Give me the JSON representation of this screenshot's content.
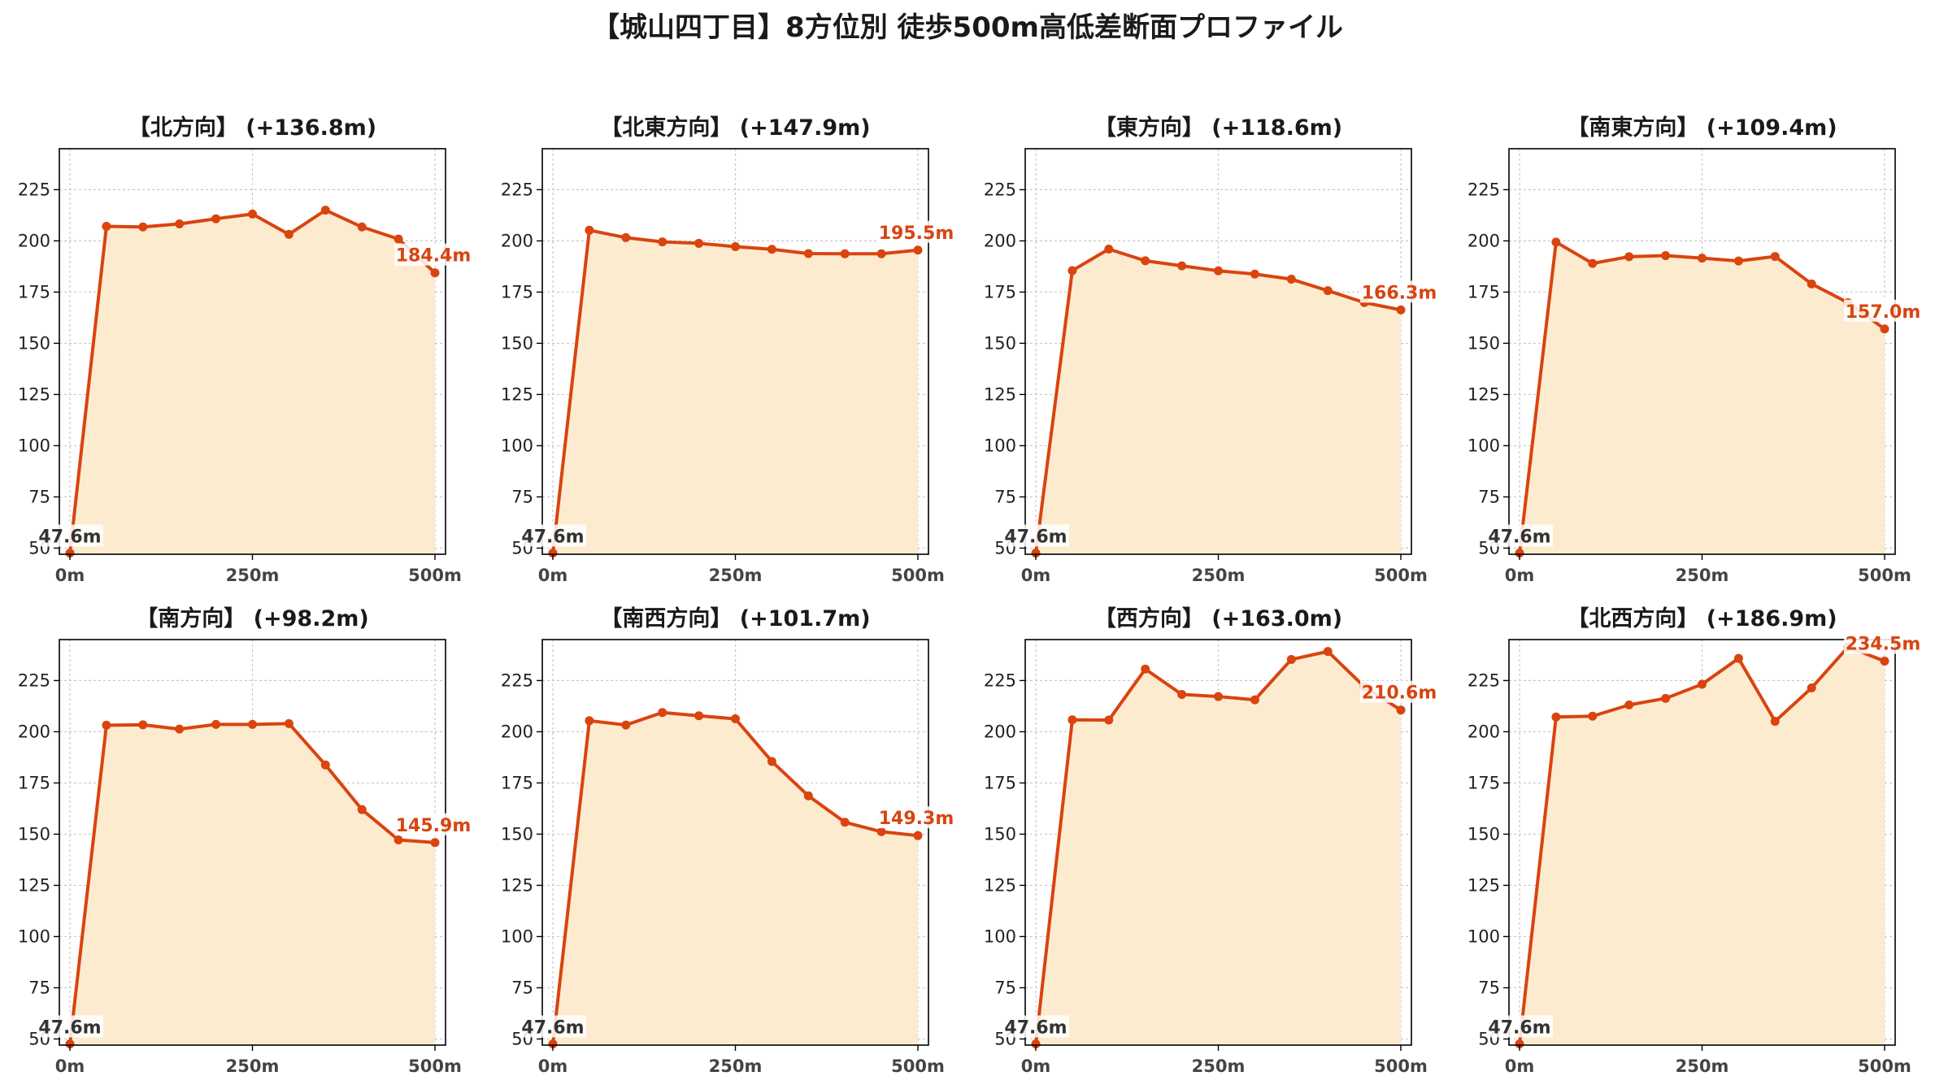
{
  "title": "【城山四丁目】8方位別 徒歩500m高低差断面プロファイル",
  "colors": {
    "line": "#d9440f",
    "fill": "#fdebd0",
    "grid": "#c8c8c8"
  },
  "chart_data": [
    {
      "type": "area",
      "title": "【北方向】 (+136.8m)",
      "x": [
        0,
        50,
        100,
        150,
        200,
        250,
        300,
        350,
        400,
        450,
        500
      ],
      "y": [
        47.6,
        207.1,
        206.8,
        208.3,
        210.8,
        213.1,
        203.2,
        215.0,
        206.8,
        200.9,
        184.4
      ],
      "xticks": [
        "0m",
        "250m",
        "500m"
      ],
      "yticks": [
        50,
        75,
        100,
        125,
        150,
        175,
        200,
        225
      ],
      "ylim": [
        47,
        245
      ],
      "xlim": [
        0,
        500
      ],
      "start_label": "47.6m",
      "end_label": "184.4m",
      "grid": true
    },
    {
      "type": "area",
      "title": "【北東方向】 (+147.9m)",
      "x": [
        0,
        50,
        100,
        150,
        200,
        250,
        300,
        350,
        400,
        450,
        500
      ],
      "y": [
        47.6,
        205.2,
        201.6,
        199.5,
        198.8,
        197.2,
        195.9,
        193.8,
        193.7,
        193.7,
        195.5
      ],
      "xticks": [
        "0m",
        "250m",
        "500m"
      ],
      "yticks": [
        50,
        75,
        100,
        125,
        150,
        175,
        200,
        225
      ],
      "ylim": [
        47,
        245
      ],
      "xlim": [
        0,
        500
      ],
      "start_label": "47.6m",
      "end_label": "195.5m",
      "grid": true
    },
    {
      "type": "area",
      "title": "【東方向】 (+118.6m)",
      "x": [
        0,
        50,
        100,
        150,
        200,
        250,
        300,
        350,
        400,
        450,
        500
      ],
      "y": [
        47.6,
        185.5,
        196.0,
        190.3,
        187.8,
        185.4,
        183.8,
        181.3,
        175.7,
        169.9,
        166.3
      ],
      "xticks": [
        "0m",
        "250m",
        "500m"
      ],
      "yticks": [
        50,
        75,
        100,
        125,
        150,
        175,
        200,
        225
      ],
      "ylim": [
        47,
        245
      ],
      "xlim": [
        0,
        500
      ],
      "start_label": "47.6m",
      "end_label": "166.3m",
      "grid": true
    },
    {
      "type": "area",
      "title": "【南東方向】 (+109.4m)",
      "x": [
        0,
        50,
        100,
        150,
        200,
        250,
        300,
        350,
        400,
        450,
        500
      ],
      "y": [
        47.6,
        199.4,
        189.0,
        192.3,
        192.8,
        191.6,
        190.2,
        192.4,
        179.0,
        169.8,
        157.0
      ],
      "xticks": [
        "0m",
        "250m",
        "500m"
      ],
      "yticks": [
        50,
        75,
        100,
        125,
        150,
        175,
        200,
        225
      ],
      "ylim": [
        47,
        245
      ],
      "xlim": [
        0,
        500
      ],
      "start_label": "47.6m",
      "end_label": "157.0m",
      "grid": true
    },
    {
      "type": "area",
      "title": "【南方向】 (+98.2m)",
      "x": [
        0,
        50,
        100,
        150,
        200,
        250,
        300,
        350,
        400,
        450,
        500
      ],
      "y": [
        47.6,
        203.2,
        203.4,
        201.3,
        203.6,
        203.6,
        204.0,
        183.8,
        162.0,
        147.2,
        145.9
      ],
      "xticks": [
        "0m",
        "250m",
        "500m"
      ],
      "yticks": [
        50,
        75,
        100,
        125,
        150,
        175,
        200,
        225
      ],
      "ylim": [
        47,
        245
      ],
      "xlim": [
        0,
        500
      ],
      "start_label": "47.6m",
      "end_label": "145.9m",
      "grid": true
    },
    {
      "type": "area",
      "title": "【南西方向】 (+101.7m)",
      "x": [
        0,
        50,
        100,
        150,
        200,
        250,
        300,
        350,
        400,
        450,
        500
      ],
      "y": [
        47.6,
        205.4,
        203.3,
        209.4,
        207.8,
        206.3,
        185.5,
        168.7,
        155.8,
        151.2,
        149.3
      ],
      "xticks": [
        "0m",
        "250m",
        "500m"
      ],
      "yticks": [
        50,
        75,
        100,
        125,
        150,
        175,
        200,
        225
      ],
      "ylim": [
        47,
        245
      ],
      "xlim": [
        0,
        500
      ],
      "start_label": "47.6m",
      "end_label": "149.3m",
      "grid": true
    },
    {
      "type": "area",
      "title": "【西方向】 (+163.0m)",
      "x": [
        0,
        50,
        100,
        150,
        200,
        250,
        300,
        350,
        400,
        450,
        500
      ],
      "y": [
        47.6,
        205.8,
        205.7,
        230.6,
        218.2,
        217.2,
        215.6,
        235.3,
        239.2,
        222.0,
        210.6
      ],
      "xticks": [
        "0m",
        "250m",
        "500m"
      ],
      "yticks": [
        50,
        75,
        100,
        125,
        150,
        175,
        200,
        225
      ],
      "ylim": [
        47,
        245
      ],
      "xlim": [
        0,
        500
      ],
      "start_label": "47.6m",
      "end_label": "210.6m",
      "grid": true
    },
    {
      "type": "area",
      "title": "【北西方向】 (+186.9m)",
      "x": [
        0,
        50,
        100,
        150,
        200,
        250,
        300,
        350,
        400,
        450,
        500
      ],
      "y": [
        47.6,
        207.2,
        207.6,
        213.1,
        216.3,
        223.2,
        235.8,
        205.1,
        221.4,
        241.4,
        234.5
      ],
      "xticks": [
        "0m",
        "250m",
        "500m"
      ],
      "yticks": [
        50,
        75,
        100,
        125,
        150,
        175,
        200,
        225
      ],
      "ylim": [
        47,
        245
      ],
      "xlim": [
        0,
        500
      ],
      "start_label": "47.6m",
      "end_label": "234.5m",
      "grid": true
    }
  ]
}
